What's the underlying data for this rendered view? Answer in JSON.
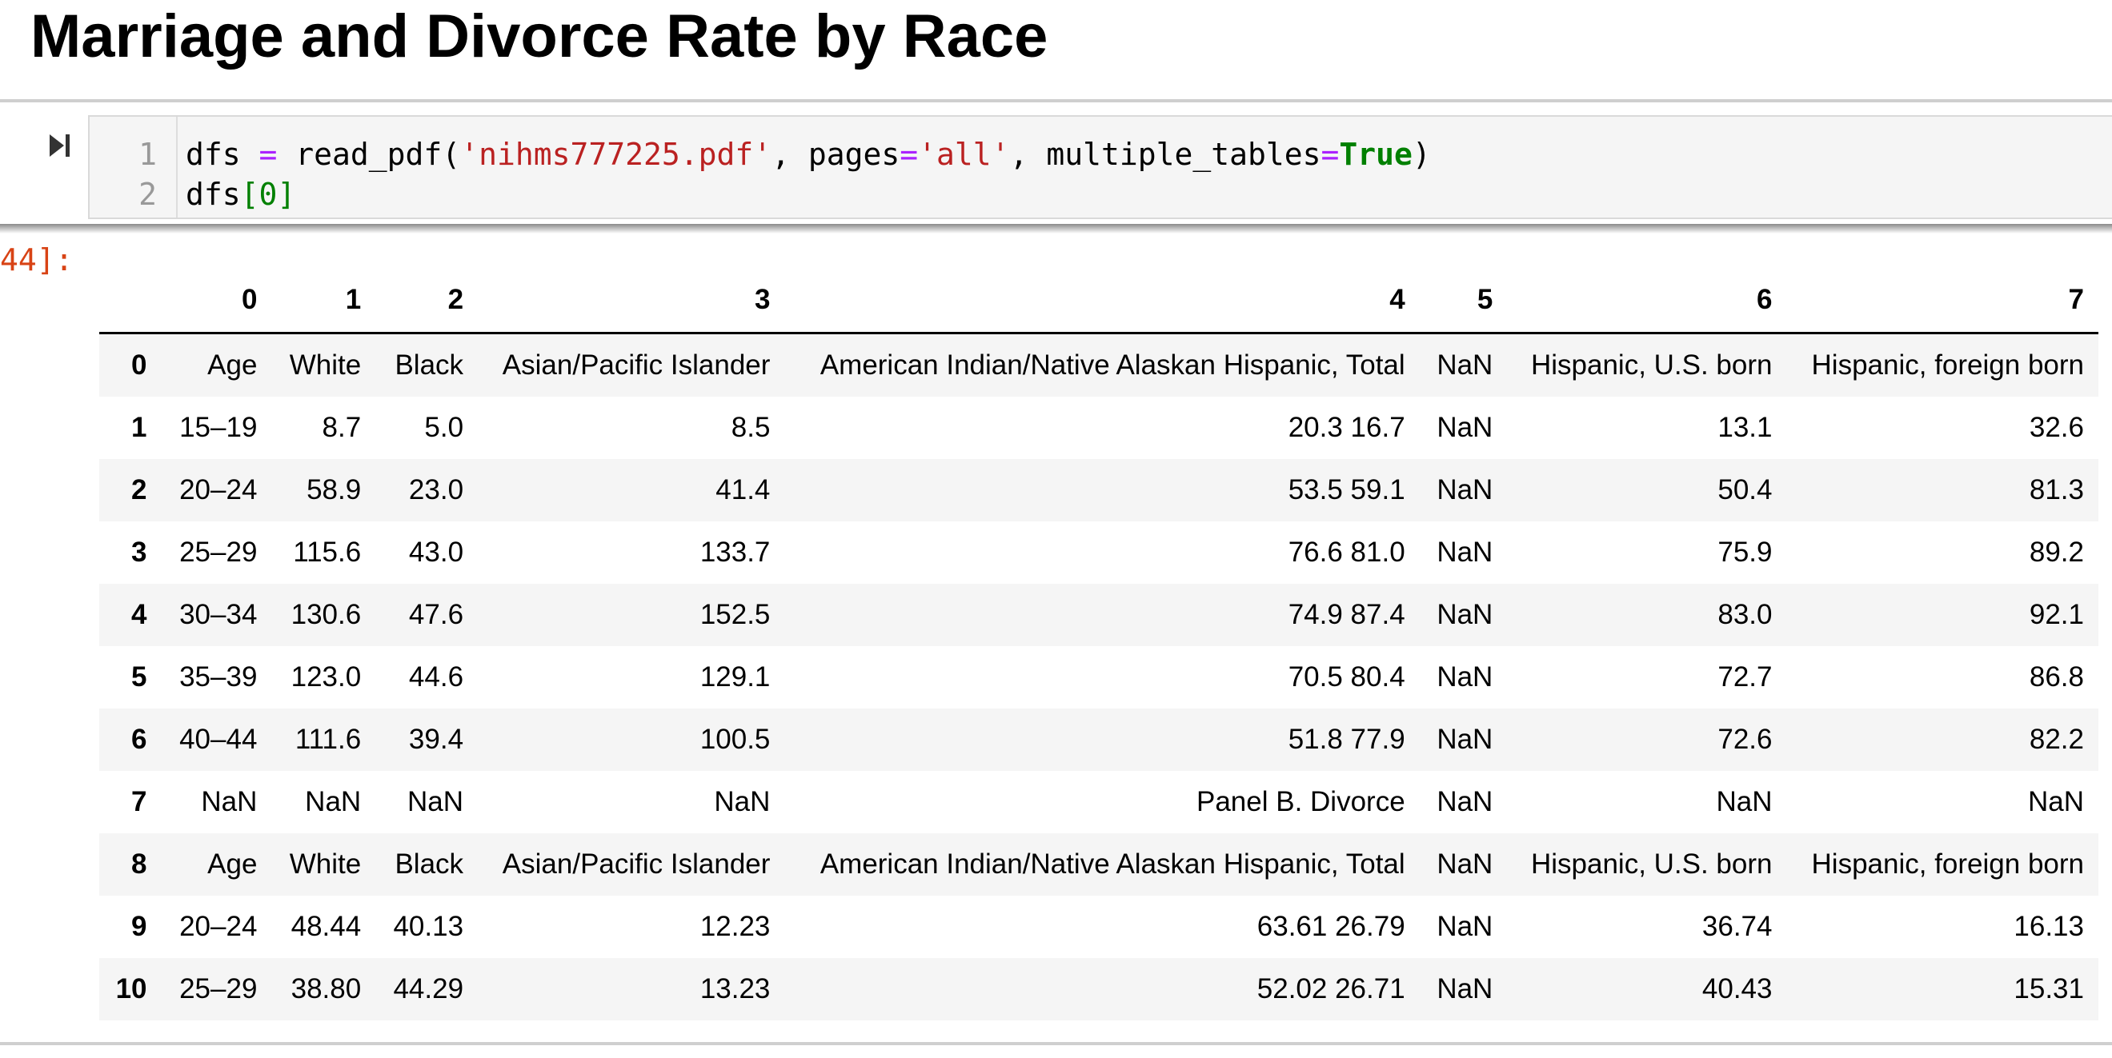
{
  "title": "Marriage and Divorce Rate by Race",
  "cell": {
    "line_numbers": [
      "1",
      "2"
    ],
    "code": {
      "line1": {
        "a": "dfs ",
        "op1": "=",
        "b": " read_pdf(",
        "s1": "'nihms777225.pdf'",
        "c": ", pages",
        "op2": "=",
        "s2": "'all'",
        "d": ", multiple_tables",
        "op3": "=",
        "kw": "True",
        "e": ")"
      },
      "line2": {
        "a": "dfs",
        "b": "[",
        "n": "0",
        "c": "]"
      }
    },
    "output_prompt": "44]:"
  },
  "table": {
    "columns": [
      "",
      "0",
      "1",
      "2",
      "3",
      "4",
      "5",
      "6",
      "7"
    ],
    "rows": [
      [
        "0",
        "Age",
        "White",
        "Black",
        "Asian/Pacific Islander",
        "American Indian/Native Alaskan Hispanic, Total",
        "NaN",
        "Hispanic, U.S. born",
        "Hispanic, foreign born"
      ],
      [
        "1",
        "15–19",
        "8.7",
        "5.0",
        "8.5",
        "20.3 16.7",
        "NaN",
        "13.1",
        "32.6"
      ],
      [
        "2",
        "20–24",
        "58.9",
        "23.0",
        "41.4",
        "53.5 59.1",
        "NaN",
        "50.4",
        "81.3"
      ],
      [
        "3",
        "25–29",
        "115.6",
        "43.0",
        "133.7",
        "76.6 81.0",
        "NaN",
        "75.9",
        "89.2"
      ],
      [
        "4",
        "30–34",
        "130.6",
        "47.6",
        "152.5",
        "74.9 87.4",
        "NaN",
        "83.0",
        "92.1"
      ],
      [
        "5",
        "35–39",
        "123.0",
        "44.6",
        "129.1",
        "70.5 80.4",
        "NaN",
        "72.7",
        "86.8"
      ],
      [
        "6",
        "40–44",
        "111.6",
        "39.4",
        "100.5",
        "51.8 77.9",
        "NaN",
        "72.6",
        "82.2"
      ],
      [
        "7",
        "NaN",
        "NaN",
        "NaN",
        "NaN",
        "Panel B. Divorce",
        "NaN",
        "NaN",
        "NaN"
      ],
      [
        "8",
        "Age",
        "White",
        "Black",
        "Asian/Pacific Islander",
        "American Indian/Native Alaskan Hispanic, Total",
        "NaN",
        "Hispanic, U.S. born",
        "Hispanic, foreign born"
      ],
      [
        "9",
        "20–24",
        "48.44",
        "40.13",
        "12.23",
        "63.61 26.79",
        "NaN",
        "36.74",
        "16.13"
      ],
      [
        "10",
        "25–29",
        "38.80",
        "44.29",
        "13.23",
        "52.02 26.71",
        "NaN",
        "40.43",
        "15.31"
      ]
    ]
  }
}
